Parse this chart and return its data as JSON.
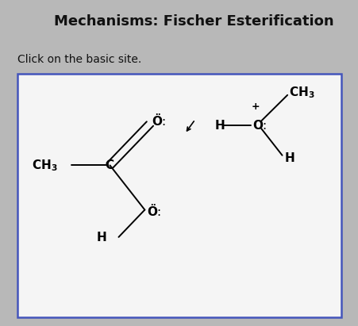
{
  "title": "Mechanisms: Fischer Esterification",
  "subtitle": "Click on the basic site.",
  "title_fontsize": 13,
  "subtitle_fontsize": 10,
  "bg_color": "#b8b8b8",
  "header_bg": "#e0e0e0",
  "content_bg": "#e8e8e8",
  "box_bg": "#f5f5f5",
  "box_border": "#4455bb",
  "text_color": "#111111"
}
